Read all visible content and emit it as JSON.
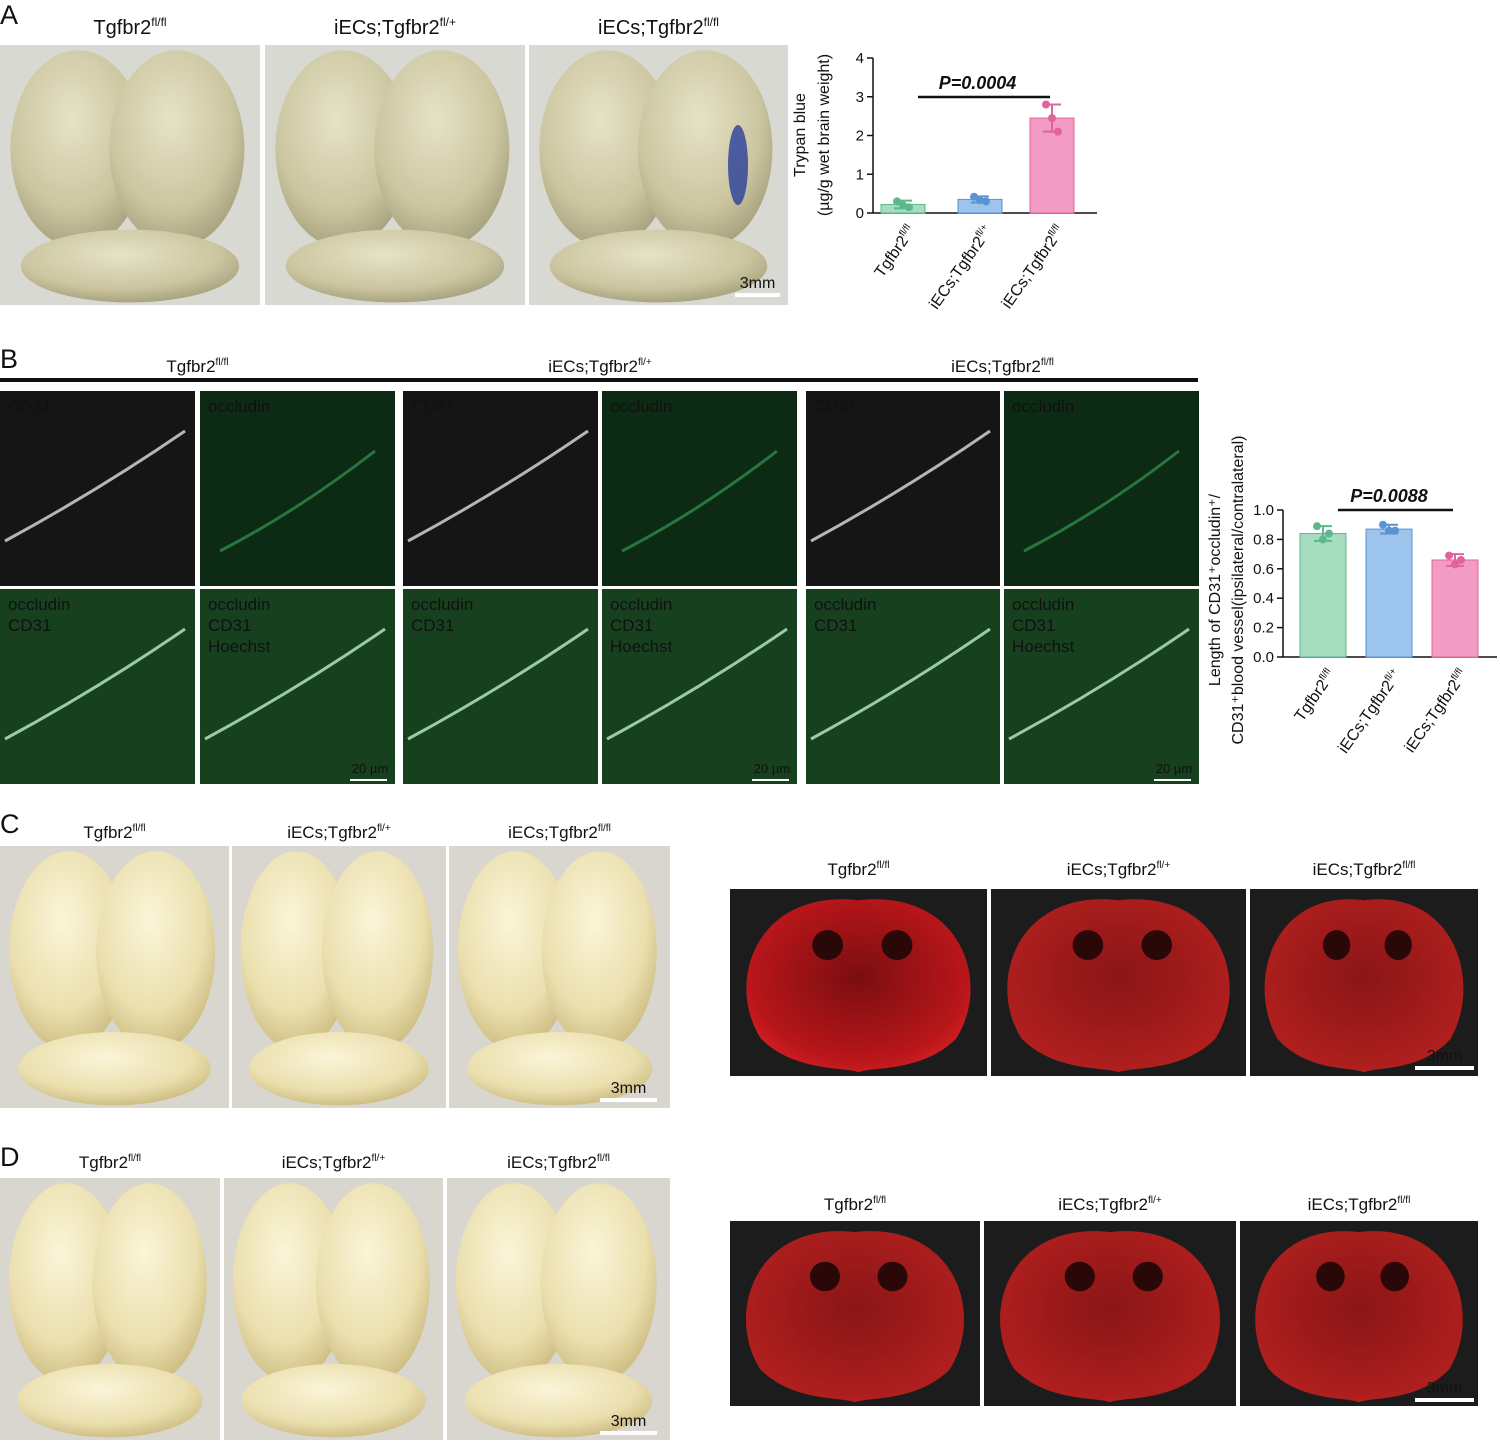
{
  "panel_a": {
    "label": "A",
    "photo_labels": [
      {
        "text": "Tgfbr2",
        "sup": "fl/fl"
      },
      {
        "text": "iECs;Tgfbr2",
        "sup": "fl/+"
      },
      {
        "text": "iECs;Tgfbr2",
        "sup": "fl/fl"
      }
    ],
    "scale_bar": "3mm"
  },
  "panel_b": {
    "label": "B",
    "groups": [
      {
        "label": {
          "text": "Tgfbr2",
          "sup": "fl/fl"
        },
        "channels": [
          [
            "CD31"
          ],
          [
            "occludin"
          ],
          [
            "occludin",
            "CD31"
          ],
          [
            "occludin",
            "CD31",
            "Hoechst"
          ]
        ],
        "scale_bar": "20 µm"
      },
      {
        "label": {
          "text": "iECs;Tgfbr2",
          "sup": "fl/+"
        },
        "channels": [
          [
            "CD31"
          ],
          [
            "occludin"
          ],
          [
            "occludin",
            "CD31"
          ],
          [
            "occludin",
            "CD31",
            "Hoechst"
          ]
        ],
        "scale_bar": "20 µm"
      },
      {
        "label": {
          "text": "iECs;Tgfbr2",
          "sup": "fl/fl"
        },
        "channels": [
          [
            "CD31"
          ],
          [
            "occludin"
          ],
          [
            "occludin",
            "CD31"
          ],
          [
            "occludin",
            "CD31",
            "Hoechst"
          ]
        ],
        "scale_bar": "20 µm"
      }
    ]
  },
  "panel_c": {
    "label": "C",
    "photo_labels": [
      {
        "text": "Tgfbr2",
        "sup": "fl/fl"
      },
      {
        "text": "iECs;Tgfbr2",
        "sup": "fl/+"
      },
      {
        "text": "iECs;Tgfbr2",
        "sup": "fl/fl"
      }
    ],
    "photo_scale_bar": "3mm",
    "section_labels": [
      {
        "text": "Tgfbr2",
        "sup": "fl/fl"
      },
      {
        "text": "iECs;Tgfbr2",
        "sup": "fl/+"
      },
      {
        "text": "iECs;Tgfbr2",
        "sup": "fl/fl"
      }
    ],
    "section_scale_bar": "3mm"
  },
  "panel_d": {
    "label": "D",
    "photo_labels": [
      {
        "text": "Tgfbr2",
        "sup": "fl/fl"
      },
      {
        "text": "iECs;Tgfbr2",
        "sup": "fl/+"
      },
      {
        "text": "iECs;Tgfbr2",
        "sup": "fl/fl"
      }
    ],
    "photo_scale_bar": "3mm",
    "section_labels": [
      {
        "text": "Tgfbr2",
        "sup": "fl/fl"
      },
      {
        "text": "iECs;Tgfbr2",
        "sup": "fl/+"
      },
      {
        "text": "iECs;Tgfbr2",
        "sup": "fl/fl"
      }
    ],
    "section_scale_bar": "3mm"
  },
  "chart_data": [
    {
      "type": "bar",
      "ylabel": [
        "Trypan blue",
        "(µg/g wet brain weight)"
      ],
      "categories": [
        "Tgfbr2",
        "iECs;Tgfbr2",
        "iECs;Tgfbr2"
      ],
      "category_superscripts": [
        "fl/fl",
        "fl/+",
        "fl/fl"
      ],
      "values": [
        0.22,
        0.35,
        2.45
      ],
      "errors": [
        0.1,
        0.08,
        0.35
      ],
      "points": [
        [
          0.3,
          0.2,
          0.15
        ],
        [
          0.42,
          0.33,
          0.3
        ],
        [
          2.8,
          2.45,
          2.1
        ]
      ],
      "colors": [
        "#a6dcc0",
        "#9cc4ec",
        "#f29cc4"
      ],
      "edge_colors": [
        "#5cb88a",
        "#5b94d2",
        "#e2639c"
      ],
      "ylim": [
        0,
        4
      ],
      "yticks": [
        0,
        1,
        2,
        3,
        4
      ],
      "annotation": "P=0.0004"
    },
    {
      "type": "bar",
      "ylabel": [
        "Length of CD31⁺occludin⁺/",
        "CD31⁺blood vessel(ipsilateral/contralateral)"
      ],
      "categories": [
        "Tgfbr2",
        "iECs;Tgfbr2",
        "iECs;Tgfbr2"
      ],
      "category_superscripts": [
        "fl/fl",
        "fl/+",
        "fl/fl"
      ],
      "values": [
        0.84,
        0.87,
        0.66
      ],
      "errors": [
        0.05,
        0.03,
        0.04
      ],
      "points": [
        [
          0.89,
          0.8,
          0.84
        ],
        [
          0.9,
          0.86,
          0.86
        ],
        [
          0.69,
          0.63,
          0.66
        ]
      ],
      "colors": [
        "#a6dcc0",
        "#9cc4ec",
        "#f29cc4"
      ],
      "edge_colors": [
        "#5cb88a",
        "#5b94d2",
        "#e2639c"
      ],
      "ylim": [
        0,
        1
      ],
      "yticks": [
        {
          "value": 0,
          "label": "0.0"
        },
        {
          "value": 0.2,
          "label": "0.2"
        },
        {
          "value": 0.4,
          "label": "0.4"
        },
        {
          "value": 0.6,
          "label": "0.6"
        },
        {
          "value": 0.8,
          "label": "0.8"
        },
        {
          "value": 1,
          "label": "1.0"
        }
      ],
      "annotation": "P=0.0088"
    }
  ]
}
